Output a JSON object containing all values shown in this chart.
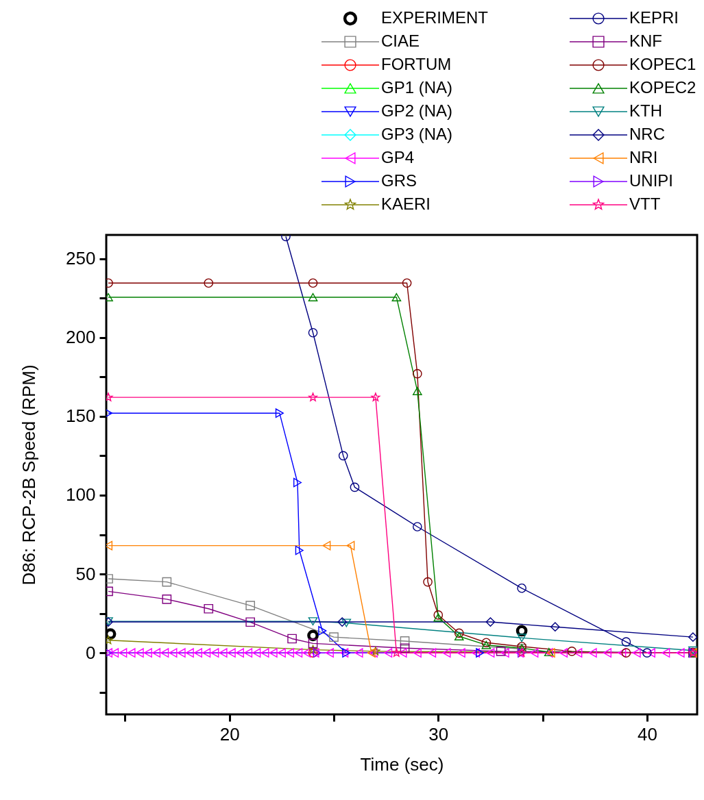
{
  "chart_data": {
    "type": "line",
    "xlabel": "Time (sec)",
    "ylabel": "D86:  RCP-2B Speed (RPM)",
    "xlim": [
      14.1,
      42.4
    ],
    "ylim": [
      -39,
      265
    ],
    "xticks": [
      {
        "value": 15,
        "label": null
      },
      20,
      {
        "value": 25,
        "label": null
      },
      30,
      {
        "value": 35,
        "label": null
      },
      40
    ],
    "yticks": [
      {
        "value": -25,
        "label": null
      },
      0,
      {
        "value": 25,
        "label": null
      },
      50,
      {
        "value": 75,
        "label": null
      },
      100,
      {
        "value": 125,
        "label": null
      },
      150,
      {
        "value": 175,
        "label": null
      },
      200,
      {
        "value": 225,
        "label": null
      },
      250
    ],
    "grid": false,
    "legend": "top right",
    "series": [
      {
        "name": "EXPERIMENT",
        "type": "scatter",
        "color": "#000000",
        "marker": "circle",
        "x": [
          14.3,
          24,
          34
        ],
        "values": [
          12,
          11,
          14
        ]
      },
      {
        "name": "CIAE",
        "color": "#808080",
        "marker": "square",
        "x": [
          14.2,
          17,
          21,
          25,
          28.4,
          34
        ],
        "values": [
          47,
          45,
          30,
          10,
          7.5,
          2.5
        ]
      },
      {
        "name": "FORTUM",
        "color": "#ff0000",
        "marker": "circle",
        "x": [
          24
        ],
        "values": [
          0
        ]
      },
      {
        "name": "GP1 (NA)",
        "color": "#00ff00",
        "marker": "triangle"
      },
      {
        "name": "GP2 (NA)",
        "color": "#0000ff",
        "marker": "triangle-down"
      },
      {
        "name": "GP3 (NA)",
        "color": "#00ffff",
        "marker": "diamond"
      },
      {
        "name": "GP4",
        "color": "#ff00ff",
        "marker": "triangle-left",
        "x": [
          14.2,
          14.5,
          14.9,
          15.3,
          15.7,
          16.1,
          16.5,
          16.9,
          17.3,
          17.7,
          18.1,
          18.5,
          18.9,
          19.3,
          19.7,
          20.1,
          20.5,
          20.9,
          21.3,
          21.7,
          22.1,
          22.5,
          22.9,
          23.3,
          23.7,
          24.1,
          24.8,
          25.5,
          26.2,
          26.9,
          27.6,
          28.3,
          29.0,
          29.7,
          30.4,
          31.1,
          31.8,
          32.5,
          33.2,
          33.9,
          34.6,
          35.3,
          36.0,
          36.7,
          37.4,
          38.1,
          38.8,
          39.5,
          40.2,
          40.9,
          41.6,
          42.2
        ],
        "values": [
          0,
          0,
          0,
          0,
          0,
          0,
          0,
          0,
          0,
          0,
          0,
          0,
          0,
          0,
          0,
          0,
          0,
          0,
          0,
          0,
          0,
          0,
          0,
          0,
          0,
          0,
          0,
          0,
          0,
          0,
          0,
          0,
          0,
          0,
          0,
          0,
          0,
          0,
          0,
          0,
          0,
          0,
          0,
          0,
          0,
          0,
          0,
          0,
          0,
          0,
          0,
          0
        ]
      },
      {
        "name": "GRS",
        "color": "#0000ff",
        "marker": "triangle-right",
        "x": [
          14.2,
          22.4,
          23.26,
          23.35,
          24.45,
          25.6,
          32,
          42.2
        ],
        "values": [
          152,
          152,
          108,
          65,
          14,
          0,
          0,
          0
        ]
      },
      {
        "name": "KAERI",
        "color": "#808000",
        "marker": "star",
        "x": [
          14.2,
          24,
          27,
          42.2
        ],
        "values": [
          8,
          2,
          1,
          0
        ]
      },
      {
        "name": "KEPRI",
        "color": "#000080",
        "marker": "circle",
        "x": [
          22.7,
          24,
          25.45,
          26,
          29,
          34,
          39,
          40,
          42.2
        ],
        "values": [
          264,
          203,
          125,
          105,
          80,
          41,
          7,
          0,
          0
        ]
      },
      {
        "name": "KNF",
        "color": "#800080",
        "marker": "square",
        "x": [
          14.2,
          17,
          19,
          21,
          23,
          24,
          28.4,
          33,
          42.2
        ],
        "values": [
          39,
          34,
          28,
          19.5,
          9,
          6,
          3,
          1,
          0
        ]
      },
      {
        "name": "KOPEC1",
        "color": "#800000",
        "marker": "circle",
        "x": [
          14.2,
          19,
          24,
          28.5,
          29,
          29.5,
          30,
          31,
          32.3,
          34,
          36.4,
          39,
          42.2
        ],
        "values": [
          234.5,
          234.5,
          234.5,
          234.5,
          177,
          45,
          24,
          12.5,
          6.5,
          4,
          1,
          0,
          0
        ]
      },
      {
        "name": "KOPEC2",
        "color": "#008000",
        "marker": "triangle",
        "x": [
          14.2,
          24,
          28,
          29,
          30,
          31,
          32.3,
          34,
          35.3,
          42.2
        ],
        "values": [
          225.5,
          225.5,
          225.5,
          166,
          22.5,
          10.5,
          5,
          3,
          0.5,
          0
        ]
      },
      {
        "name": "KTH",
        "color": "#008080",
        "marker": "triangle-down",
        "x": [
          14.2,
          24,
          25.6,
          34,
          42.2
        ],
        "values": [
          20,
          20,
          19,
          9.5,
          1.5
        ]
      },
      {
        "name": "NRC",
        "color": "#000080",
        "marker": "diamond",
        "x": [
          14.2,
          25.4,
          32.5,
          35.6,
          42.2
        ],
        "values": [
          19.6,
          19.6,
          19.6,
          16.5,
          10
        ]
      },
      {
        "name": "NRI",
        "color": "#ff8000",
        "marker": "triangle-left",
        "x": [
          14.2,
          24.65,
          25.8,
          26.8,
          35.4,
          42.2
        ],
        "values": [
          68,
          68,
          68,
          0,
          0,
          0
        ]
      },
      {
        "name": "UNIPI",
        "color": "#8000ff",
        "marker": "triangle-right",
        "x": [
          14.2,
          24.2,
          34,
          42.2
        ],
        "values": [
          0,
          0,
          0,
          0
        ]
      },
      {
        "name": "VTT",
        "color": "#ff0080",
        "marker": "star",
        "x": [
          14.2,
          24,
          27,
          28,
          34,
          42.2
        ],
        "values": [
          162,
          162,
          162,
          0,
          0,
          0
        ]
      }
    ]
  }
}
